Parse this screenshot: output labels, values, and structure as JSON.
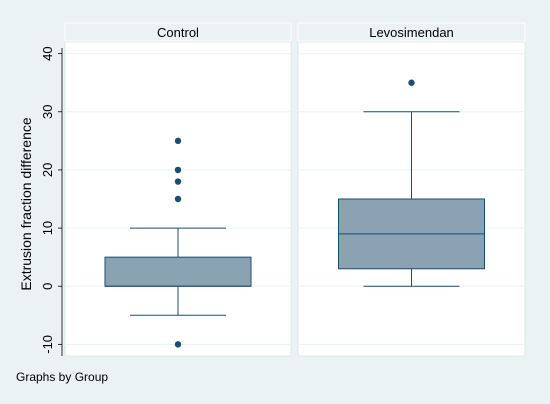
{
  "chart_data": {
    "type": "boxplot",
    "ylabel": "Extrusion fraction difference",
    "ylim": [
      -12,
      42
    ],
    "yticks": [
      -10,
      0,
      10,
      20,
      30,
      40
    ],
    "grid": true,
    "note": "Graphs by Group",
    "colors": {
      "background": "#ffffff",
      "plot_area": "#ffffff",
      "outer_frame": "#eaf2f3",
      "strip": "#eaf2f3",
      "grid": "#eaf2f3",
      "box_fill": "#8ba2b3",
      "line": "#1b4d6e",
      "outlier": "#1b4d6e"
    },
    "panels": [
      {
        "group": "Control",
        "whisker_low": -5,
        "q1": 0,
        "median": 0,
        "q3": 5,
        "whisker_high": 10,
        "outliers": [
          25,
          20,
          18,
          15,
          -10
        ]
      },
      {
        "group": "Levosimendan",
        "whisker_low": 0,
        "q1": 3,
        "median": 9,
        "q3": 15,
        "whisker_high": 30,
        "outliers": [
          35
        ]
      }
    ]
  }
}
